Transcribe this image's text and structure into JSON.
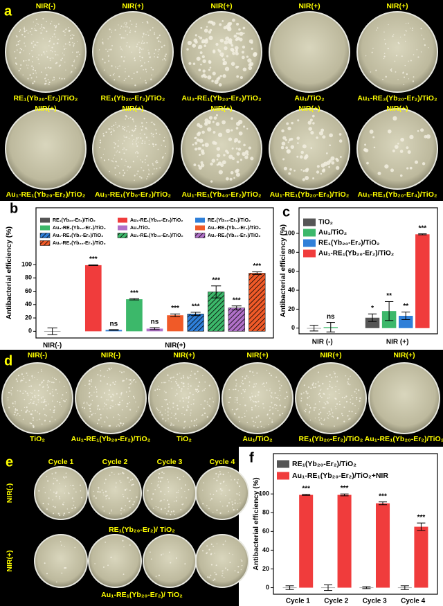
{
  "panels": {
    "a": {
      "letter": "a",
      "dishes": [
        {
          "top": "NIR(-)",
          "bottom": "RE₁(Yb₂₀-Er₂)/TiO₂"
        },
        {
          "top": "NIR(+)",
          "bottom": "RE₁(Yb₂₀-Er₂)/TiO₂"
        },
        {
          "top": "NIR(+)",
          "bottom": "Au₃-RE₁(Yb₂₀-Er₂)/TiO₂"
        },
        {
          "top": "NIR(+)",
          "bottom": "Au₁/TiO₂"
        },
        {
          "top": "NIR(+)",
          "bottom": "Au₁-RE₃(Yb₂₀-Er₂)/TiO₂"
        },
        {
          "top": "NIR(+)",
          "bottom": "Au₁-RE₁(Yb₂₀-Er₂)/TiO₂"
        },
        {
          "top": "NIR(+)",
          "bottom": "Au₁-RE₁(Yb₀-Er₂)/TiO₂"
        },
        {
          "top": "NIR(+)",
          "bottom": "Au₁-RE₁(Yb₄₀-Er₂)/TiO₂"
        },
        {
          "top": "NIR(+)",
          "bottom": "Au₁-RE₁(Yb₂₀-Er₀)/TiO₂"
        },
        {
          "top": "NIR(+)",
          "bottom": "Au₁-RE₁(Yb₂₀-Er₄)/TiO₂"
        }
      ]
    },
    "d": {
      "letter": "d",
      "dishes": [
        {
          "top": "NIR(-)",
          "bottom": "TiO₂"
        },
        {
          "top": "NIR(-)",
          "bottom": "Au₁-RE₁(Yb₂₀-Er₂)/TiO₂"
        },
        {
          "top": "NIR(+)",
          "bottom": "TiO₂"
        },
        {
          "top": "NIR(+)",
          "bottom": "Au₁/TiO₂"
        },
        {
          "top": "NIR(+)",
          "bottom": "RE₁(Yb₂₀-Er₂)/TiO₂"
        },
        {
          "top": "NIR(+)",
          "bottom": "Au₁-RE₁(Yb₂₀-Er₂)/TiO₂"
        }
      ]
    },
    "e": {
      "letter": "e",
      "cycles": [
        "Cycle 1",
        "Cycle 2",
        "Cycle 3",
        "Cycle 4"
      ],
      "rows": [
        "NIR(-)",
        "NIR(+)"
      ],
      "captions": [
        "RE₁(Yb₂₀-Er₂)/ TiO₂",
        "Au₁-RE₁(Yb₂₀-Er₂)/ TiO₂"
      ]
    }
  },
  "chart_data": [
    {
      "type": "bar",
      "letter": "b",
      "ylabel": "Antibacterial efficiency (%)",
      "categories": [
        "NIR(-)",
        "NIR(+)"
      ],
      "ylim": [
        -10,
        185
      ],
      "yticks": [
        0,
        20,
        40,
        60,
        80,
        100
      ],
      "series": [
        {
          "name": "RE₁(Yb₂₀-Er₂)/TiO₂",
          "color": "#555555",
          "hatch": false,
          "values": [
            0,
            null
          ],
          "errors": [
            5,
            null
          ],
          "labels": [
            null,
            null
          ]
        },
        {
          "name": "Au₁-RE₁(Yb₂₀-Er₂)/TiO₂",
          "color": "#f03c3c",
          "hatch": false,
          "values": [
            null,
            99
          ],
          "errors": [
            null,
            0.5
          ],
          "labels": [
            null,
            "***"
          ]
        },
        {
          "name": "RE₁(Yb₄₀-Er₂)/TiO₂",
          "color": "#2f7fd8",
          "hatch": false,
          "values": [
            null,
            2
          ],
          "errors": [
            null,
            0.5
          ],
          "labels": [
            null,
            "ns"
          ]
        },
        {
          "name": "Au₃-RE₁(Yb₂₀-Er₂)/TiO₂",
          "color": "#3cb86a",
          "hatch": false,
          "values": [
            null,
            48
          ],
          "errors": [
            null,
            1
          ],
          "labels": [
            null,
            "***"
          ]
        },
        {
          "name": "Au₁/TiO₂",
          "color": "#b070c8",
          "hatch": false,
          "values": [
            null,
            4
          ],
          "errors": [
            null,
            1.5
          ],
          "labels": [
            null,
            "ns"
          ]
        },
        {
          "name": "Au₁-RE₃(Yb₂₀-Er₂)/TiO₂",
          "color": "#f05a28",
          "hatch": false,
          "values": [
            null,
            24
          ],
          "errors": [
            null,
            2
          ],
          "labels": [
            null,
            "***"
          ]
        },
        {
          "name": "Au₁-RE₁(Yb₀-Er₂)/TiO₂",
          "color": "#2f7fd8",
          "hatch": true,
          "values": [
            null,
            26
          ],
          "errors": [
            null,
            2.5
          ],
          "labels": [
            null,
            "***"
          ]
        },
        {
          "name": "Au₁-RE₁(Yb₄₀-Er₂)/TiO₂",
          "color": "#3cb86a",
          "hatch": true,
          "values": [
            null,
            59
          ],
          "errors": [
            null,
            9
          ],
          "labels": [
            null,
            "***"
          ]
        },
        {
          "name": "Au₁-RE₁(Yb₂₀-Er₀)/TiO₂",
          "color": "#b070c8",
          "hatch": true,
          "values": [
            null,
            35
          ],
          "errors": [
            null,
            3
          ],
          "labels": [
            null,
            "***"
          ]
        },
        {
          "name": "Au₁-RE₁(Yb₂₀-Er₄)/TiO₂",
          "color": "#f05a28",
          "hatch": true,
          "values": [
            null,
            87
          ],
          "errors": [
            null,
            2
          ],
          "labels": [
            null,
            "***"
          ]
        }
      ]
    },
    {
      "type": "bar",
      "letter": "c",
      "ylabel": "Antibacterial efficiency (%)",
      "categories": [
        "NIR (-)",
        "NIR (+)"
      ],
      "ylim": [
        -6,
        127
      ],
      "yticks": [
        0,
        20,
        40,
        60,
        80,
        100
      ],
      "series": [
        {
          "name": "TiO₂",
          "color": "#555555",
          "hatch": false,
          "values": [
            0,
            11
          ],
          "errors": [
            3,
            4
          ],
          "labels": [
            null,
            "*"
          ]
        },
        {
          "name": "Au₁/TiO₂",
          "color": "#3cb86a",
          "hatch": false,
          "values": [
            1,
            18
          ],
          "errors": [
            5,
            10
          ],
          "labels": [
            "ns",
            "**"
          ]
        },
        {
          "name": "RE₁(Yb₂₀-Er₂)/TiO₂",
          "color": "#2f7fd8",
          "hatch": false,
          "values": [
            null,
            13
          ],
          "errors": [
            null,
            4
          ],
          "labels": [
            null,
            "**"
          ]
        },
        {
          "name": "Au₁-RE₁(Yb₂₀-Er₂)/TiO₂",
          "color": "#f03c3c",
          "hatch": false,
          "values": [
            null,
            99
          ],
          "errors": [
            null,
            0.5
          ],
          "labels": [
            null,
            "***"
          ]
        }
      ]
    },
    {
      "type": "bar",
      "letter": "f",
      "ylabel": "Antibacterial efficiency (%)",
      "categories": [
        "Cycle 1",
        "Cycle 2",
        "Cycle 3",
        "Cycle 4"
      ],
      "ylim": [
        -7,
        143
      ],
      "yticks": [
        0,
        20,
        40,
        60,
        80,
        100
      ],
      "series": [
        {
          "name": "RE₁(Yb₂₀-Er₂)/TiO₂",
          "color": "#555555",
          "hatch": false,
          "values": [
            0,
            0,
            0,
            0
          ],
          "errors": [
            2,
            3,
            1,
            2
          ],
          "labels": [
            null,
            null,
            null,
            null
          ]
        },
        {
          "name": "Au₁-RE₁(Yb₂₀-Er₂)/TiO₂+NIR",
          "color": "#f03c3c",
          "hatch": false,
          "values": [
            99,
            99,
            90,
            65
          ],
          "errors": [
            0.5,
            1,
            1.5,
            4
          ],
          "labels": [
            "***",
            "***",
            "***",
            "***"
          ]
        }
      ]
    }
  ]
}
